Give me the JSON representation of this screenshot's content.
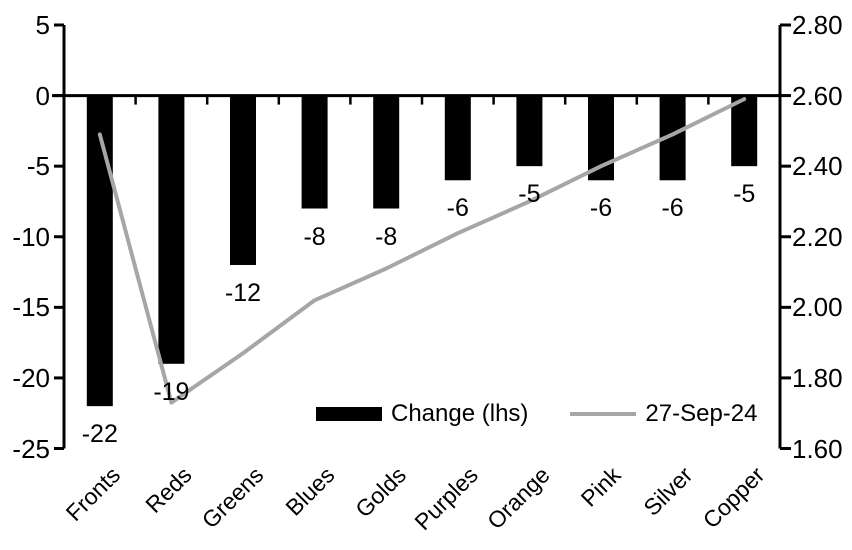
{
  "chart_data": {
    "type": "bar",
    "title": "",
    "categories": [
      "Fronts",
      "Reds",
      "Greens",
      "Blues",
      "Golds",
      "Purples",
      "Orange",
      "Pink",
      "Silver",
      "Copper"
    ],
    "series": [
      {
        "name": "Change (lhs)",
        "type": "bar",
        "axis": "left",
        "values": [
          -22,
          -19,
          -12,
          -8,
          -8,
          -6,
          -5,
          -6,
          -6,
          -5
        ],
        "data_labels": [
          "-22",
          "-19",
          "-12",
          "-8",
          "-8",
          "-6",
          "-5",
          "-6",
          "-6",
          "-5"
        ]
      },
      {
        "name": "27-Sep-24",
        "type": "line",
        "axis": "right",
        "values": [
          2.49,
          1.73,
          1.87,
          2.02,
          2.11,
          2.21,
          2.3,
          2.4,
          2.49,
          2.59
        ]
      }
    ],
    "left_axis": {
      "max": 5,
      "min": -25,
      "step": 5,
      "tick_labels": [
        "5",
        "0",
        "-5",
        "-10",
        "-15",
        "-20",
        "-25"
      ]
    },
    "right_axis": {
      "max": 2.8,
      "min": 1.6,
      "step": 0.2,
      "tick_labels": [
        "2.80",
        "2.60",
        "2.40",
        "2.20",
        "2.00",
        "1.80",
        "1.60"
      ]
    },
    "grid": false,
    "legend_position": "inside-bottom-center"
  },
  "legend": {
    "bar_label": "Change (lhs)",
    "line_label": "27-Sep-24"
  },
  "colors": {
    "bar": "#000000",
    "line": "#a6a6a6",
    "axis": "#000000",
    "background": "#ffffff"
  }
}
